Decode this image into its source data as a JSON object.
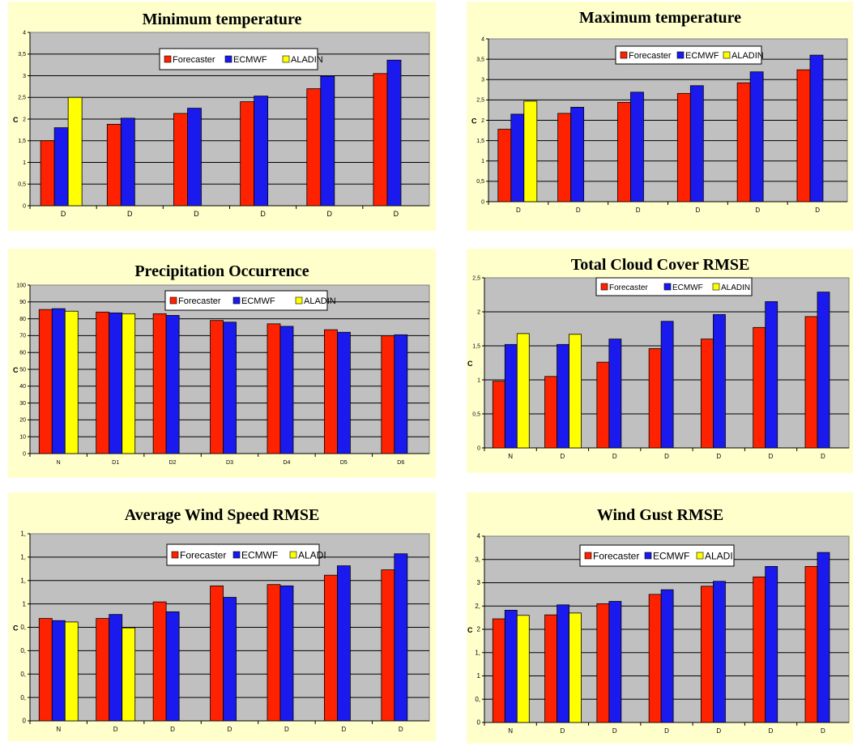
{
  "colors": {
    "panel_bg": "#ffffcc",
    "plot_bg": "#c0c0c0",
    "Forecaster": "#ff2200",
    "ECMWF": "#1a1aee",
    "ALADIN": "#ffff00"
  },
  "chart_data": [
    {
      "type": "bar",
      "title": "Minimum temperature",
      "ylabel": "C",
      "ylim": [
        0,
        4
      ],
      "yticks": [
        "0",
        "0,5",
        "1",
        "1,5",
        "2",
        "2,5",
        "3",
        "3,5",
        "4"
      ],
      "categories": [
        "D",
        "D",
        "D",
        "D",
        "D",
        "D"
      ],
      "legend": [
        "Forecaster",
        "ECMWF",
        "ALADIN"
      ],
      "series": [
        {
          "name": "Forecaster",
          "values": [
            1.5,
            1.88,
            2.13,
            2.4,
            2.7,
            3.05
          ]
        },
        {
          "name": "ECMWF",
          "values": [
            1.8,
            2.02,
            2.25,
            2.53,
            2.99,
            3.36
          ]
        },
        {
          "name": "ALADIN",
          "values": [
            2.5,
            null,
            null,
            null,
            null,
            null
          ]
        }
      ],
      "grid": true,
      "legend_position": "top"
    },
    {
      "type": "bar",
      "title": "Maximum temperature",
      "ylabel": "C",
      "ylim": [
        0,
        4
      ],
      "yticks": [
        "0",
        "0,5",
        "1",
        "1,5",
        "2",
        "2,5",
        "3",
        "3,5",
        "4"
      ],
      "categories": [
        "D",
        "D",
        "D",
        "D",
        "D",
        "D"
      ],
      "legend": [
        "Forecaster",
        "ECMWF",
        "ALADIN"
      ],
      "series": [
        {
          "name": "Forecaster",
          "values": [
            1.78,
            2.17,
            2.44,
            2.66,
            2.92,
            3.24
          ]
        },
        {
          "name": "ECMWF",
          "values": [
            2.15,
            2.32,
            2.69,
            2.85,
            3.19,
            3.6
          ]
        },
        {
          "name": "ALADIN",
          "values": [
            2.47,
            null,
            null,
            null,
            null,
            null
          ]
        }
      ],
      "grid": true,
      "legend_position": "top"
    },
    {
      "type": "bar",
      "title": "Precipitation Occurrence",
      "ylabel": "C",
      "ylim": [
        0,
        100
      ],
      "yticks": [
        "0",
        "10",
        "20",
        "30",
        "40",
        "50",
        "60",
        "70",
        "80",
        "90",
        "100"
      ],
      "categories": [
        "N",
        "D1",
        "D2",
        "D3",
        "D4",
        "D5",
        "D6"
      ],
      "legend": [
        "Forecaster",
        "ECMWF",
        "ALADIN"
      ],
      "series": [
        {
          "name": "Forecaster",
          "values": [
            85.5,
            84,
            83,
            79,
            77,
            73.5,
            70
          ]
        },
        {
          "name": "ECMWF",
          "values": [
            86,
            83.5,
            82,
            78,
            75.5,
            72,
            70.5
          ]
        },
        {
          "name": "ALADIN",
          "values": [
            84.5,
            83,
            null,
            null,
            null,
            null,
            null
          ]
        }
      ],
      "grid": true,
      "legend_position": "top"
    },
    {
      "type": "bar",
      "title": "Total Cloud Cover RMSE",
      "ylabel": "C",
      "ylim": [
        0,
        2.5
      ],
      "yticks": [
        "0",
        "0,5",
        "1",
        "1,5",
        "2",
        "2,5"
      ],
      "categories": [
        "N",
        "D",
        "D",
        "D",
        "D",
        "D",
        "D"
      ],
      "legend": [
        "Forecaster",
        "ECMWF",
        "ALADIN"
      ],
      "series": [
        {
          "name": "Forecaster",
          "values": [
            0.98,
            1.05,
            1.26,
            1.46,
            1.6,
            1.77,
            1.93
          ]
        },
        {
          "name": "ECMWF",
          "values": [
            1.52,
            1.52,
            1.6,
            1.86,
            1.96,
            2.15,
            2.29
          ]
        },
        {
          "name": "ALADIN",
          "values": [
            1.68,
            1.67,
            null,
            null,
            null,
            null,
            null
          ]
        }
      ],
      "grid": true,
      "legend_position": "top"
    },
    {
      "type": "bar",
      "title": "Average Wind Speed RMSE",
      "ylabel": "C",
      "ylim": [
        0,
        7
      ],
      "yticks": [
        "0",
        "0,",
        "0,",
        "0,",
        "0,",
        "1",
        "1,",
        "1,",
        "1,"
      ],
      "categories": [
        "N",
        "D",
        "D",
        "D",
        "D",
        "D",
        "D"
      ],
      "legend": [
        "Forecaster",
        "ECMWF",
        "ALADI"
      ],
      "series": [
        {
          "name": "Forecaster",
          "values": [
            3.83,
            3.83,
            4.45,
            5.05,
            5.1,
            5.45,
            5.65
          ]
        },
        {
          "name": "ECMWF",
          "values": [
            3.75,
            3.98,
            4.08,
            4.62,
            5.05,
            5.8,
            6.25
          ]
        },
        {
          "name": "ALADI",
          "values": [
            3.7,
            3.48,
            null,
            null,
            null,
            null,
            null
          ]
        }
      ],
      "grid": true,
      "legend_position": "top"
    },
    {
      "type": "bar",
      "title": "Wind Gust RMSE",
      "ylabel": "C",
      "ylim": [
        0,
        8
      ],
      "yticks": [
        "0",
        "0,",
        "1",
        "1,",
        "2",
        "2,",
        "3",
        "3,",
        "4"
      ],
      "categories": [
        "N",
        "D",
        "D",
        "D",
        "D",
        "D",
        "D"
      ],
      "legend": [
        "Forecaster",
        "ECMWF",
        "ALADI"
      ],
      "series": [
        {
          "name": "Forecaster",
          "values": [
            4.45,
            4.62,
            5.1,
            5.5,
            5.85,
            6.25,
            6.7
          ]
        },
        {
          "name": "ECMWF",
          "values": [
            4.82,
            5.05,
            5.2,
            5.7,
            6.06,
            6.7,
            7.3
          ]
        },
        {
          "name": "ALADI",
          "values": [
            4.6,
            4.7,
            null,
            null,
            null,
            null,
            null
          ]
        }
      ],
      "grid": true,
      "legend_position": "top"
    }
  ]
}
